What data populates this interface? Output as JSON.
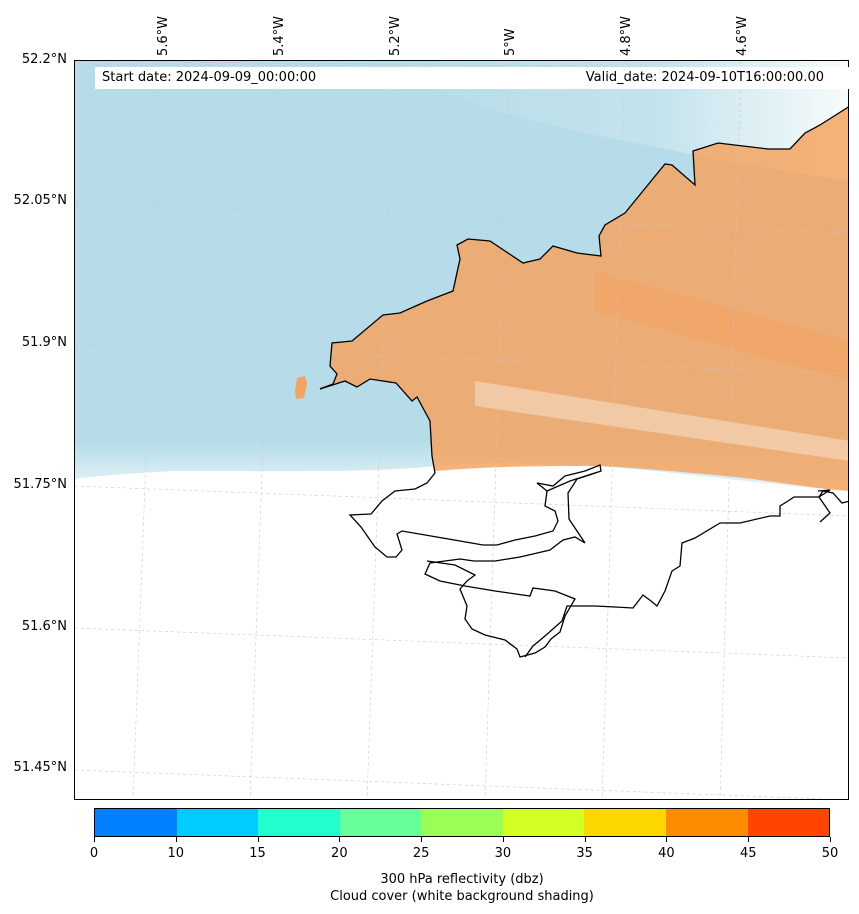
{
  "info": {
    "start_date": "Start date: 2024-09-09_00:00:00",
    "valid_date": "Valid_date: 2024-09-10T16:00:00.00"
  },
  "axes": {
    "lat_labels": [
      "52.2°N",
      "52.05°N",
      "51.9°N",
      "51.75°N",
      "51.6°N",
      "51.45°N"
    ],
    "lon_labels": [
      "5.6°W",
      "5.4°W",
      "5.2°W",
      "5°W",
      "4.8°W",
      "4.6°W"
    ]
  },
  "colorbar": {
    "colors": [
      "#0080ff",
      "#00ccff",
      "#22ffcc",
      "#66ff99",
      "#99ff55",
      "#d4ff22",
      "#ffd700",
      "#ff8c00",
      "#ff4500"
    ],
    "ticks": [
      "0",
      "10",
      "15",
      "20",
      "25",
      "30",
      "35",
      "40",
      "45",
      "50"
    ],
    "label_line1": "300 hPa reflectivity (dbz)",
    "label_line2": "Cloud cover (white background shading)"
  },
  "colors": {
    "sea_shading": "#add8e6",
    "land_shading": "#f4a460",
    "coastline": "#000000"
  }
}
